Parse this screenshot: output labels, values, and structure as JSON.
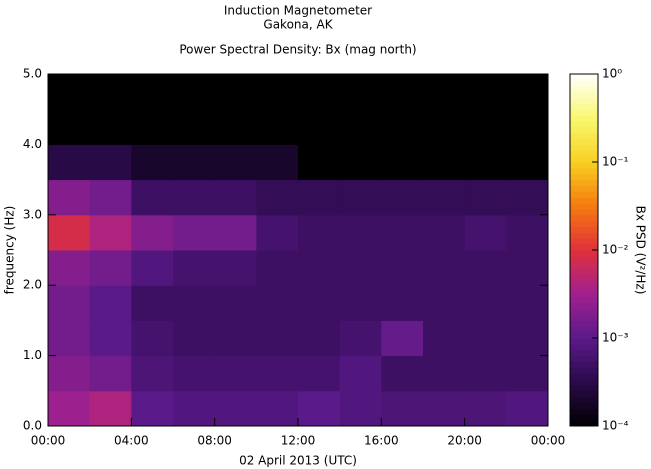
{
  "chart_data": {
    "type": "heatmap",
    "title": "Induction Magnetometer",
    "subtitle": "Gakona, AK",
    "plot_title": "Power Spectral Density: Bx (mag north)",
    "xlabel": "02 April 2013 (UTC)",
    "ylabel": "frequency (Hz)",
    "colorbar_label": "Bx PSD (V²/Hz)",
    "xlim": [
      0,
      24
    ],
    "xticks": [
      {
        "value": 0,
        "label": "00:00"
      },
      {
        "value": 4,
        "label": "04:00"
      },
      {
        "value": 8,
        "label": "08:00"
      },
      {
        "value": 12,
        "label": "12:00"
      },
      {
        "value": 16,
        "label": "16:00"
      },
      {
        "value": 20,
        "label": "20:00"
      },
      {
        "value": 24,
        "label": "00:00"
      }
    ],
    "ylim": [
      0,
      5
    ],
    "yticks": [
      {
        "value": 0,
        "label": "0.0"
      },
      {
        "value": 1,
        "label": "1.0"
      },
      {
        "value": 2,
        "label": "2.0"
      },
      {
        "value": 3,
        "label": "3.0"
      },
      {
        "value": 4,
        "label": "4.0"
      },
      {
        "value": 5,
        "label": "5.0"
      }
    ],
    "clim": [
      0.0001,
      1
    ],
    "clog": true,
    "cticks": [
      {
        "value": 0.0001,
        "label": "10⁻⁴"
      },
      {
        "value": 0.001,
        "label": "10⁻³"
      },
      {
        "value": 0.01,
        "label": "10⁻²"
      },
      {
        "value": 0.1,
        "label": "10⁻¹"
      },
      {
        "value": 1,
        "label": "10⁰"
      }
    ],
    "colormap": [
      "#000000",
      "#2a0a4a",
      "#5b1a8a",
      "#a0208f",
      "#e0303a",
      "#f57a10",
      "#f8d020",
      "#f8f870",
      "#ffffff"
    ],
    "x_bins": [
      0,
      2,
      4,
      6,
      8,
      10,
      12,
      14,
      16,
      18,
      20,
      22,
      24
    ],
    "y_bins": [
      0,
      0.5,
      1,
      1.5,
      2,
      2.5,
      3,
      3.5,
      4,
      4.5,
      5
    ],
    "z": [
      [
        0.003,
        0.004,
        0.001,
        0.0008,
        0.0008,
        0.0008,
        0.001,
        0.0008,
        0.0007,
        0.0007,
        0.0007,
        0.0008
      ],
      [
        0.002,
        0.0015,
        0.0007,
        0.0006,
        0.0006,
        0.0006,
        0.0006,
        0.0008,
        0.0005,
        0.0005,
        0.0005,
        0.0005
      ],
      [
        0.0015,
        0.001,
        0.0006,
        0.0005,
        0.0005,
        0.0005,
        0.0005,
        0.0006,
        0.0012,
        0.0005,
        0.0005,
        0.0005
      ],
      [
        0.0015,
        0.001,
        0.0005,
        0.0005,
        0.0005,
        0.0005,
        0.0005,
        0.0005,
        0.0005,
        0.0005,
        0.0005,
        0.0005
      ],
      [
        0.002,
        0.0015,
        0.0008,
        0.0006,
        0.0006,
        0.0005,
        0.0005,
        0.0005,
        0.0005,
        0.0005,
        0.0005,
        0.0005
      ],
      [
        0.008,
        0.004,
        0.002,
        0.0015,
        0.0015,
        0.0006,
        0.0005,
        0.0005,
        0.0005,
        0.0005,
        0.0006,
        0.0005
      ],
      [
        0.002,
        0.0015,
        0.0005,
        0.0005,
        0.0005,
        0.0004,
        0.0004,
        0.0004,
        0.0004,
        0.0004,
        0.0004,
        0.0004
      ],
      [
        0.0003,
        0.0003,
        0.0002,
        0.0002,
        0.0002,
        0.0002,
        0.0001,
        0.0001,
        0.0001,
        0.0001,
        0.0001,
        0.0001
      ],
      [
        0.0001,
        0.0001,
        0.0001,
        0.0001,
        0.0001,
        0.0001,
        0.0001,
        0.0001,
        0.0001,
        0.0001,
        0.0001,
        0.0001
      ],
      [
        0.0001,
        0.0001,
        0.0001,
        0.0001,
        0.0001,
        0.0001,
        0.0001,
        0.0001,
        0.0001,
        0.0001,
        0.0001,
        0.0001
      ]
    ]
  }
}
